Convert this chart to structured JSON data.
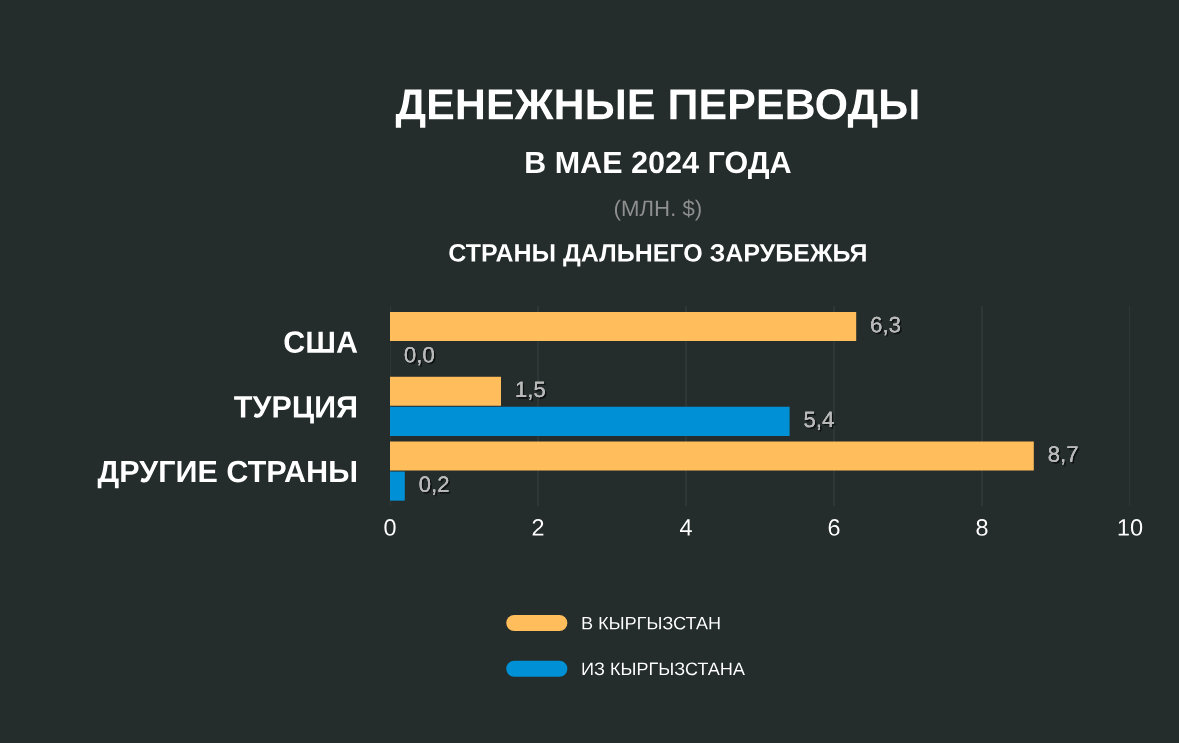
{
  "chart_data": {
    "type": "bar",
    "orientation": "horizontal",
    "title": "ДЕНЕЖНЫЕ ПЕРЕВОДЫ",
    "subtitle": "В МАЕ 2024 ГОДА",
    "annotations": [
      "(МЛН. $)",
      "СТРАНЫ ДАЛЬНЕГО ЗАРУБЕЖЬЯ"
    ],
    "categories": [
      "США",
      "ТУРЦИЯ",
      "ДРУГИЕ СТРАНЫ"
    ],
    "series": [
      {
        "name": "В КЫРГЫЗСТАН",
        "color": "#ffbd5c",
        "values": [
          6.3,
          1.5,
          8.7
        ],
        "value_labels": [
          "6,3",
          "1,5",
          "8,7"
        ]
      },
      {
        "name": "ИЗ КЫРГЫЗСТАНА",
        "color": "#0090d6",
        "values": [
          0.0,
          5.4,
          0.2
        ],
        "value_labels": [
          "0,0",
          "5,4",
          "0,2"
        ]
      }
    ],
    "xlim": [
      0,
      10
    ],
    "xticks": [
      0,
      2,
      4,
      6,
      8,
      10
    ],
    "grid": "x",
    "legend": "bottom"
  }
}
